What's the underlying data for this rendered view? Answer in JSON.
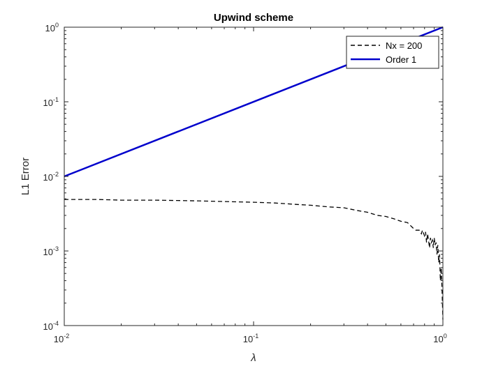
{
  "chart_data": {
    "type": "line",
    "title": "Upwind scheme",
    "xlabel": "λ",
    "ylabel": "L1 Error",
    "xscale": "log",
    "yscale": "log",
    "xlim": [
      0.01,
      1
    ],
    "ylim": [
      0.0001,
      1
    ],
    "grid": false,
    "legend_position": "top-right",
    "x_ticks": [
      {
        "value": 0.01,
        "base": "10",
        "exp": "-2"
      },
      {
        "value": 0.1,
        "base": "10",
        "exp": "-1"
      },
      {
        "value": 1,
        "base": "10",
        "exp": "0"
      }
    ],
    "y_ticks": [
      {
        "value": 0.0001,
        "base": "10",
        "exp": "-4"
      },
      {
        "value": 0.001,
        "base": "10",
        "exp": "-3"
      },
      {
        "value": 0.01,
        "base": "10",
        "exp": "-2"
      },
      {
        "value": 0.1,
        "base": "10",
        "exp": "-1"
      },
      {
        "value": 1,
        "base": "10",
        "exp": "0"
      }
    ],
    "series": [
      {
        "name": "Nx = 200",
        "color": "#000000",
        "style": "dashed",
        "x": [
          0.01,
          0.015,
          0.02,
          0.03,
          0.05,
          0.07,
          0.1,
          0.13,
          0.17,
          0.2,
          0.25,
          0.3,
          0.35,
          0.4,
          0.45,
          0.5,
          0.55,
          0.6,
          0.65,
          0.7,
          0.72,
          0.75,
          0.77,
          0.78,
          0.8,
          0.81,
          0.82,
          0.83,
          0.85,
          0.86,
          0.87,
          0.88,
          0.89,
          0.9,
          0.91,
          0.92,
          0.93,
          0.94,
          0.95,
          0.96,
          0.97,
          0.98,
          0.99,
          1.0
        ],
        "values": [
          0.0049,
          0.0049,
          0.0048,
          0.0048,
          0.0047,
          0.0046,
          0.0045,
          0.0044,
          0.0042,
          0.0041,
          0.0039,
          0.0038,
          0.0035,
          0.0033,
          0.003,
          0.0029,
          0.0027,
          0.0025,
          0.0024,
          0.002,
          0.0019,
          0.0019,
          0.0017,
          0.0019,
          0.0016,
          0.0018,
          0.0013,
          0.0017,
          0.0011,
          0.0015,
          0.0013,
          0.0014,
          0.0011,
          0.0015,
          0.0012,
          0.0013,
          0.0009,
          0.0012,
          0.0007,
          0.0009,
          0.0004,
          0.0006,
          0.0003,
          0.00012
        ]
      },
      {
        "name": "Order 1",
        "color": "#0000cc",
        "style": "solid",
        "x": [
          0.01,
          1
        ],
        "values": [
          0.01,
          1
        ]
      }
    ]
  }
}
